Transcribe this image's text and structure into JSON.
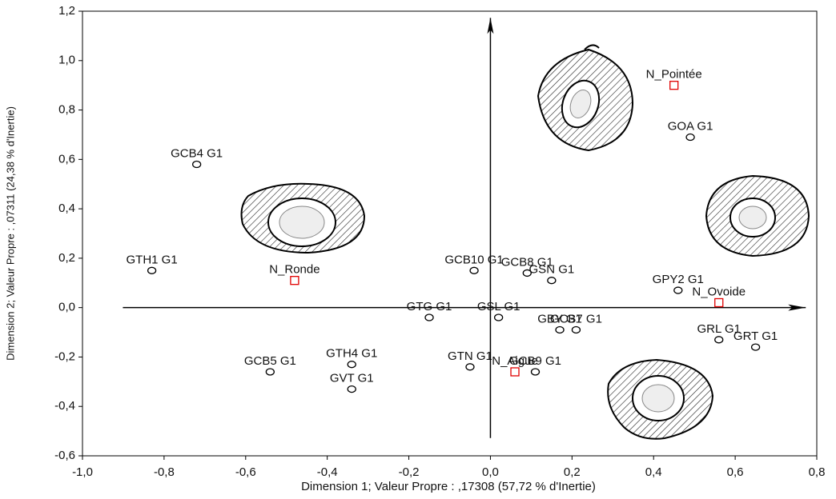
{
  "chart_data": {
    "type": "scatter",
    "xlabel": "Dimension 1; Valeur Propre : ,17308 (57,72  % d'Inertie)",
    "ylabel": "Dimension 2; Valeur Propre : ,07311 (24,38  % d'Inertie)",
    "xlim": [
      -1.0,
      0.8
    ],
    "ylim": [
      -0.6,
      1.2
    ],
    "xticks": [
      {
        "value": -1.0,
        "label": "-1,0"
      },
      {
        "value": -0.8,
        "label": "-0,8"
      },
      {
        "value": -0.6,
        "label": "-0,6"
      },
      {
        "value": -0.4,
        "label": "-0,4"
      },
      {
        "value": -0.2,
        "label": "-0,2"
      },
      {
        "value": 0.0,
        "label": "0,0"
      },
      {
        "value": 0.2,
        "label": "0,2"
      },
      {
        "value": 0.4,
        "label": "0,4"
      },
      {
        "value": 0.6,
        "label": "0,6"
      },
      {
        "value": 0.8,
        "label": "0,8"
      }
    ],
    "yticks": [
      {
        "value": -0.6,
        "label": "-0,6"
      },
      {
        "value": -0.4,
        "label": "-0,4"
      },
      {
        "value": -0.2,
        "label": "-0,2"
      },
      {
        "value": 0.0,
        "label": "0,0"
      },
      {
        "value": 0.2,
        "label": "0,2"
      },
      {
        "value": 0.4,
        "label": "0,4"
      },
      {
        "value": 0.6,
        "label": "0,6"
      },
      {
        "value": 0.8,
        "label": "0,8"
      },
      {
        "value": 1.0,
        "label": "1,0"
      },
      {
        "value": 1.2,
        "label": "1,2"
      }
    ],
    "series": [
      {
        "color": "#000000",
        "marker": "circle",
        "labels": [
          "GCB4 G1",
          "GTH1 G1",
          "GCB10 G1",
          "GCB8 G1",
          "GSN G1",
          "GPY2 G1",
          "GOA G1",
          "GTG G1",
          "GSL G1",
          "GBY G1",
          "GCB7 G1",
          "GRL G1",
          "GRT G1",
          "GTH4 G1",
          "GCB5 G1",
          "GVT G1",
          "GTN G1",
          "GCB9 G1"
        ],
        "x": [
          -0.72,
          -0.83,
          -0.04,
          0.09,
          0.15,
          0.46,
          0.49,
          -0.15,
          0.02,
          0.17,
          0.21,
          0.56,
          0.65,
          -0.34,
          -0.54,
          -0.34,
          -0.05,
          0.11
        ],
        "values": [
          0.58,
          0.15,
          0.15,
          0.14,
          0.11,
          0.07,
          0.69,
          -0.04,
          -0.04,
          -0.09,
          -0.09,
          -0.13,
          -0.16,
          -0.23,
          -0.26,
          -0.33,
          -0.24,
          -0.26
        ]
      },
      {
        "color": "#e00000",
        "marker": "square",
        "labels": [
          "N_Pointée",
          "N_Ronde",
          "N_Ovoide",
          "N_Aigue"
        ],
        "x": [
          0.45,
          -0.48,
          0.56,
          0.06
        ],
        "values": [
          0.9,
          0.11,
          0.02,
          -0.26
        ]
      }
    ]
  }
}
